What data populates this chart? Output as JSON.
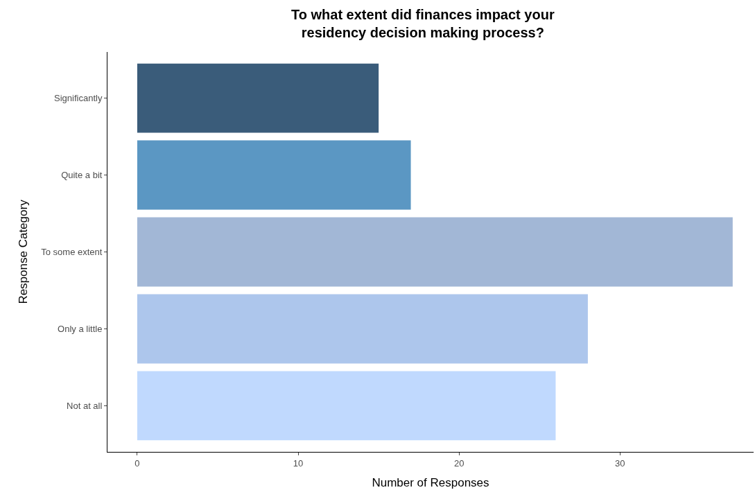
{
  "chart_data": {
    "type": "bar",
    "orientation": "horizontal",
    "title": "To what extent did finances impact your\nresidency decision making process?",
    "xlabel": "Number of Responses",
    "ylabel": "Response Category",
    "categories": [
      "Significantly",
      "Quite a bit",
      "To some extent",
      "Only a little",
      "Not at all"
    ],
    "values": [
      15,
      17,
      37,
      28,
      26
    ],
    "colors": [
      "#3a5c7a",
      "#5b97c3",
      "#a2b7d6",
      "#adc6ec",
      "#c0d9fe"
    ],
    "xlim": [
      -1.85,
      38.3
    ],
    "xticks": [
      0,
      10,
      20,
      30
    ],
    "legend": false
  }
}
